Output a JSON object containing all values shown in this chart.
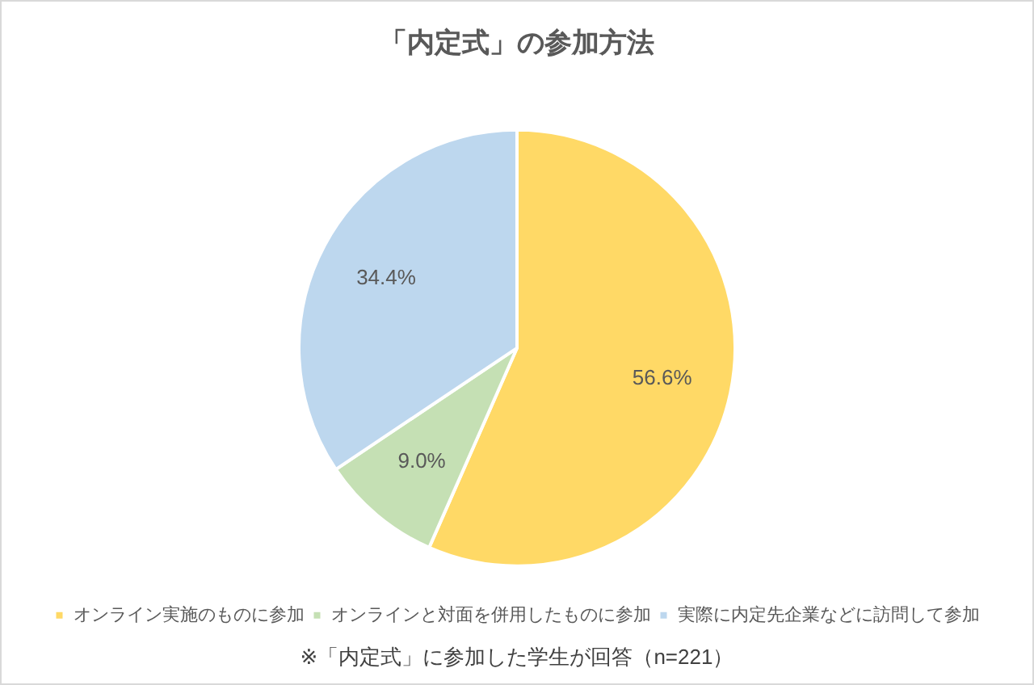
{
  "chart_data": {
    "type": "pie",
    "title": "「内定式」の参加方法",
    "categories": [
      "オンライン実施のものに参加",
      "オンラインと対面を併用したものに参加",
      "実際に内定先企業などに訪問して参加"
    ],
    "values": [
      56.6,
      9.0,
      34.4
    ],
    "colors": [
      "#ffd966",
      "#c5e0b4",
      "#bdd7ee"
    ],
    "value_labels": [
      "56.6%",
      "9.0%",
      "34.4%"
    ],
    "legend": "bottom",
    "annotations": [
      "※「内定式」に参加した学生が回答（n=221）"
    ]
  }
}
